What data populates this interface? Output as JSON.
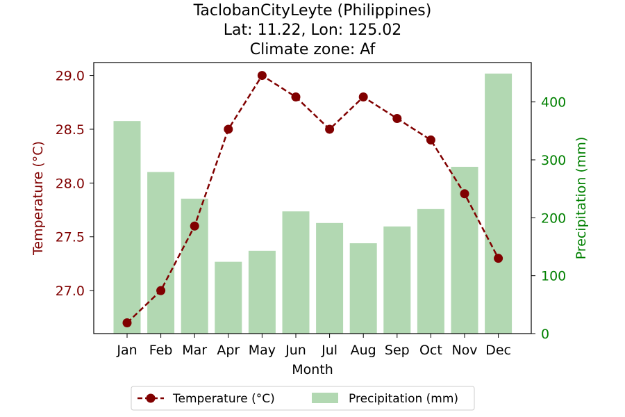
{
  "chart_data": {
    "type": "bar+line",
    "title_lines": [
      "TaclobanCityLeyte (Philippines)",
      "Lat: 11.22, Lon: 125.02",
      "Climate zone: Af"
    ],
    "xlabel": "Month",
    "ylabel_left": "Temperature (°C)",
    "ylabel_right": "Precipitation (mm)",
    "categories": [
      "Jan",
      "Feb",
      "Mar",
      "Apr",
      "May",
      "Jun",
      "Jul",
      "Aug",
      "Sep",
      "Oct",
      "Nov",
      "Dec"
    ],
    "series": [
      {
        "name": "Temperature (°C)",
        "kind": "line",
        "axis": "left",
        "values": [
          26.7,
          27.0,
          27.6,
          28.5,
          29.0,
          28.8,
          28.5,
          28.8,
          28.6,
          28.4,
          27.9,
          27.3
        ]
      },
      {
        "name": "Precipitation (mm)",
        "kind": "bar",
        "axis": "right",
        "values": [
          367,
          279,
          233,
          124,
          143,
          211,
          191,
          156,
          185,
          215,
          288,
          449
        ]
      }
    ],
    "ylim_left": [
      26.6,
      29.12
    ],
    "ylim_right": [
      0,
      468
    ],
    "yticks_left": [
      "27.0",
      "27.5",
      "28.0",
      "28.5",
      "29.0"
    ],
    "yticks_right": [
      "0",
      "100",
      "200",
      "300",
      "400"
    ],
    "colors": {
      "temperature": "#800000",
      "precipitation": "#b2d8b2",
      "precip_axis": "#008000"
    },
    "legend_placement": "bottom-center",
    "grid": false
  }
}
